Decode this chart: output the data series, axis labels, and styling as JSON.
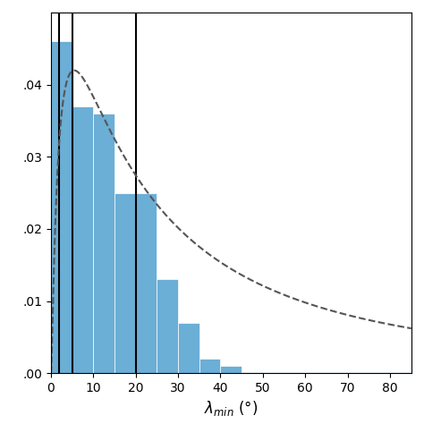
{
  "bar_edges": [
    0,
    5,
    10,
    15,
    20,
    25,
    30,
    35,
    40,
    45,
    85
  ],
  "bar_heights": [
    0.046,
    0.037,
    0.036,
    0.025,
    0.025,
    0.013,
    0.007,
    0.002,
    0.001,
    0.0002
  ],
  "bar_color": "#6baed6",
  "bar_edgecolor": "#6baed6",
  "vlines": [
    2.0,
    5.0,
    20.0
  ],
  "vline_color": "black",
  "vline_lw": 1.5,
  "dashed_curve_color": "#555555",
  "dashed_curve_peak_x": 5.5,
  "dashed_curve_peak_y": 0.042,
  "dashed_curve_decay": 20.0,
  "xlim": [
    0,
    85
  ],
  "ylim": [
    0,
    0.05
  ],
  "yticks": [
    0.0,
    0.01,
    0.02,
    0.03,
    0.04
  ],
  "xticks": [
    0,
    10,
    20,
    30,
    40,
    50,
    60,
    70,
    80
  ],
  "figsize": [
    4.74,
    4.74
  ],
  "dpi": 100
}
